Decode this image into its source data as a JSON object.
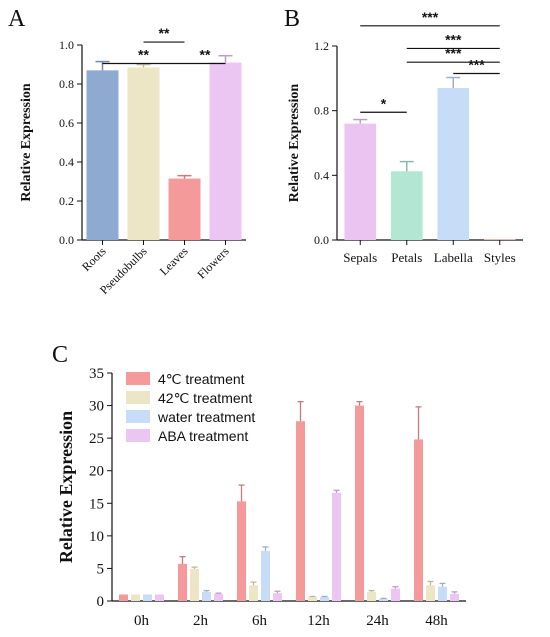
{
  "chart_data": [
    {
      "panel": "A",
      "type": "bar",
      "ylabel": "Relative Expression",
      "ylim": [
        0,
        1.0
      ],
      "yticks": [
        "0.0",
        "0.2",
        "0.4",
        "0.6",
        "0.8",
        "1.0"
      ],
      "categories": [
        "Roots",
        "Pseudobulbs",
        "Leaves",
        "Flowers"
      ],
      "values": [
        0.87,
        0.885,
        0.315,
        0.91
      ],
      "errors": [
        0.045,
        0.015,
        0.015,
        0.035
      ],
      "colors": [
        "#8eaad1",
        "#ece6c6",
        "#f59a9a",
        "#ebc6f2"
      ],
      "significance": [
        {
          "from": 0,
          "to": 2,
          "level": 0.905,
          "label": "**"
        },
        {
          "from": 1,
          "to": 2,
          "level": 1.015,
          "label": "**"
        },
        {
          "from": 2,
          "to": 3,
          "level": 0.905,
          "label": "**"
        }
      ]
    },
    {
      "panel": "B",
      "type": "bar",
      "ylabel": "Relative Expression",
      "ylim": [
        0,
        1.2
      ],
      "yticks": [
        "0.0",
        "0.4",
        "0.8",
        "1.2"
      ],
      "categories": [
        "Sepals",
        "Petals",
        "Labella",
        "Styles"
      ],
      "values": [
        0.72,
        0.425,
        0.94,
        0.005
      ],
      "errors": [
        0.025,
        0.06,
        0.065,
        0.0
      ],
      "colors": [
        "#ebc4f1",
        "#b3e6d3",
        "#c7dcf7",
        "#f5b7b1"
      ],
      "significance": [
        {
          "from": 0,
          "to": 1,
          "level": 0.79,
          "label": "*"
        },
        {
          "from": 2,
          "to": 3,
          "level": 1.03,
          "label": "***"
        },
        {
          "from": 1,
          "to": 3,
          "level": 1.1,
          "label": "***"
        },
        {
          "from": 1,
          "to": 3,
          "level": 1.185,
          "label": "***"
        },
        {
          "from": 0,
          "to": 3,
          "level": 1.325,
          "label": "***"
        }
      ]
    },
    {
      "panel": "C",
      "type": "bar",
      "ylabel": "Relative Expression",
      "ylim": [
        0,
        35
      ],
      "yticks": [
        "0",
        "5",
        "10",
        "15",
        "20",
        "25",
        "30",
        "35"
      ],
      "categories": [
        "0h",
        "2h",
        "6h",
        "12h",
        "24h",
        "48h"
      ],
      "legend_position": "top-left",
      "series": [
        {
          "name": "4℃ treatment",
          "color": "#f59a9a",
          "values": [
            1,
            5.7,
            15.3,
            27.6,
            30,
            24.8
          ],
          "errors": [
            0,
            1.1,
            2.5,
            3.0,
            0.6,
            5.0
          ]
        },
        {
          "name": "42℃ treatment",
          "color": "#ece6c6",
          "values": [
            1,
            4.9,
            2.4,
            0.6,
            1.4,
            2.4
          ],
          "errors": [
            0,
            0.3,
            0.5,
            0.1,
            0.2,
            0.6
          ]
        },
        {
          "name": "water treatment",
          "color": "#c7dcf7",
          "values": [
            1,
            1.4,
            7.7,
            0.6,
            0.3,
            2.2
          ],
          "errors": [
            0,
            0.2,
            0.6,
            0.1,
            0.1,
            0.5
          ]
        },
        {
          "name": "ABA treatment",
          "color": "#ebc6f2",
          "values": [
            1,
            1.1,
            1.2,
            16.6,
            1.9,
            1.1
          ],
          "errors": [
            0,
            0.1,
            0.3,
            0.4,
            0.3,
            0.3
          ]
        }
      ]
    }
  ]
}
